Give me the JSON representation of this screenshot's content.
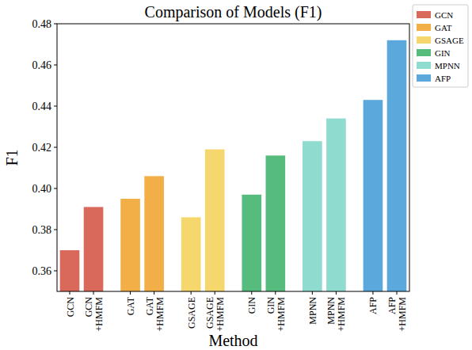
{
  "chart_data": {
    "type": "bar",
    "title": "Comparison of Models (F1)",
    "x_label": "Method",
    "y_label": "F1",
    "categories": [
      "GCN",
      "GCN +HMFM",
      "GAT",
      "GAT +HMFM",
      "GSAGE",
      "GSAGE +HMFM",
      "GIN",
      "GIN +HMFM",
      "MPNN",
      "MPNN +HMFM",
      "AFP",
      "AFP +HMFM"
    ],
    "series": [
      {
        "name": "GCN",
        "color": "#d9695b",
        "values": [
          0.37,
          0.391,
          null,
          null,
          null,
          null,
          null,
          null,
          null,
          null,
          null,
          null
        ]
      },
      {
        "name": "GAT",
        "color": "#f2ae47",
        "values": [
          null,
          null,
          0.395,
          0.406,
          null,
          null,
          null,
          null,
          null,
          null,
          null,
          null
        ]
      },
      {
        "name": "GSAGE",
        "color": "#f5d76e",
        "values": [
          null,
          null,
          null,
          null,
          0.386,
          0.419,
          null,
          null,
          null,
          null,
          null,
          null
        ]
      },
      {
        "name": "GIN",
        "color": "#55bc7e",
        "values": [
          null,
          null,
          null,
          null,
          null,
          null,
          0.397,
          0.416,
          null,
          null,
          null,
          null
        ]
      },
      {
        "name": "MPNN",
        "color": "#8fdbcf",
        "values": [
          null,
          null,
          null,
          null,
          null,
          null,
          null,
          null,
          0.423,
          0.434,
          null,
          null
        ]
      },
      {
        "name": "AFP",
        "color": "#5ba8dc",
        "values": [
          null,
          null,
          null,
          null,
          null,
          null,
          null,
          null,
          null,
          null,
          0.443,
          0.472
        ]
      }
    ],
    "ylim": [
      0.35,
      0.48
    ],
    "yticks": [
      0.36,
      0.38,
      {
        "value": 0.4,
        "label": "0.40"
      },
      0.42,
      0.44,
      0.46,
      0.48
    ],
    "grid": false,
    "legend": "right"
  }
}
